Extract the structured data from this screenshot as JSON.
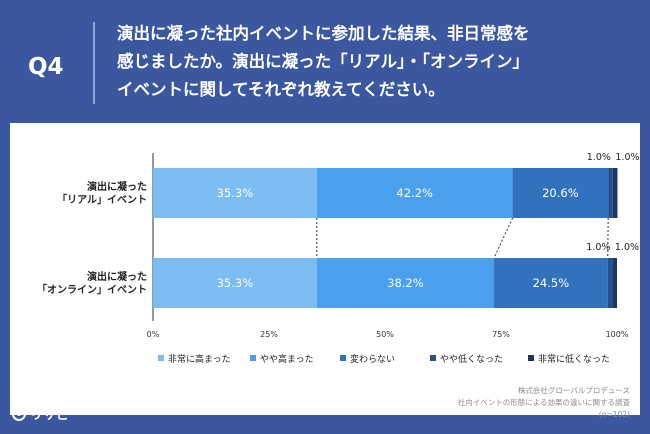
{
  "header": {
    "q_label": "Q4",
    "question": "演出に凝った社内イベントに参加した結果、非日常感を\n感じましたか。演出に凝った「リアル」・「オンライン」\nイベントに関してそれぞれ教えてください。"
  },
  "source": {
    "line1": "株式会社グローバルプロデュース",
    "line2": "社内イベントの形態による効果の違いに関する調査",
    "line3": "(n=102)"
  },
  "brand": {
    "name": "リサピー"
  },
  "chart_data": {
    "type": "bar",
    "orientation": "horizontal-stacked-100",
    "categories": [
      [
        "演出に凝った",
        "「リアル」イベント"
      ],
      [
        "演出に凝った",
        "「オンライン」イベント"
      ]
    ],
    "series": [
      {
        "name": "非常に高まった",
        "color": "#7bbcf3",
        "values": [
          35.3,
          35.3
        ]
      },
      {
        "name": "やや高まった",
        "color": "#4a9fee",
        "values": [
          42.2,
          38.2
        ]
      },
      {
        "name": "変わらない",
        "color": "#3272bd",
        "values": [
          20.6,
          24.5
        ]
      },
      {
        "name": "やや低くなった",
        "color": "#24508e",
        "values": [
          1.0,
          1.0
        ]
      },
      {
        "name": "非常に低くなった",
        "color": "#1d3566",
        "values": [
          1.0,
          1.0
        ]
      }
    ],
    "data_labels": [
      [
        "35.3%",
        "42.2%",
        "20.6%",
        "1.0%",
        "1.0%"
      ],
      [
        "35.3%",
        "38.2%",
        "24.5%",
        "1.0%",
        "1.0%"
      ]
    ],
    "xlim": [
      0,
      100
    ],
    "x_ticks": [
      "0%",
      "25%",
      "50%",
      "75%",
      "100%"
    ],
    "legend_position": "bottom"
  }
}
